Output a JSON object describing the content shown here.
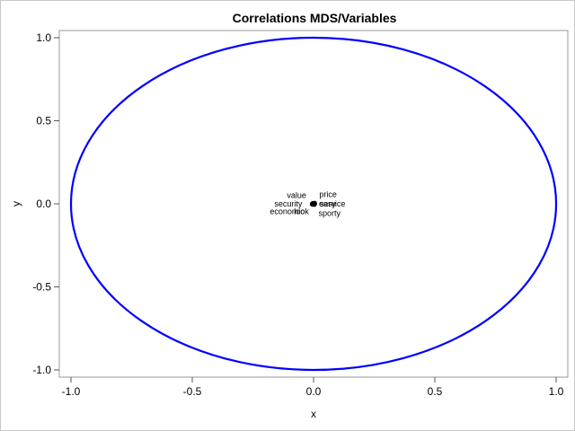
{
  "chart_data": {
    "type": "scatter",
    "title": "Correlations MDS/Variables",
    "xlabel": "x",
    "ylabel": "y",
    "xlim": [
      -1.0,
      1.0
    ],
    "ylim": [
      -1.0,
      1.0
    ],
    "xticks": [
      "-1.0",
      "-0.5",
      "0.0",
      "0.5",
      "1.0"
    ],
    "yticks": [
      "1.0",
      "0.5",
      "0.0",
      "-0.5",
      "-1.0"
    ],
    "xtick_values": [
      -1.0,
      -0.5,
      0.0,
      0.5,
      1.0
    ],
    "ytick_values": [
      1.0,
      0.5,
      0.0,
      -0.5,
      -1.0
    ],
    "grid": false,
    "circle": {
      "radius": 1.0,
      "color": "#0000ff"
    },
    "marker_color": "#000000",
    "points": [
      {
        "label": "value",
        "x": -0.003,
        "y": 0.002
      },
      {
        "label": "price",
        "x": 0.004,
        "y": 0.003
      },
      {
        "label": "security",
        "x": -0.004,
        "y": 0.0
      },
      {
        "label": "easy",
        "x": 0.002,
        "y": 0.0
      },
      {
        "label": "service",
        "x": 0.004,
        "y": 0.0
      },
      {
        "label": "economic",
        "x": -0.005,
        "y": -0.002
      },
      {
        "label": "look",
        "x": -0.002,
        "y": -0.002
      },
      {
        "label": "sporty",
        "x": 0.003,
        "y": -0.003
      }
    ]
  }
}
